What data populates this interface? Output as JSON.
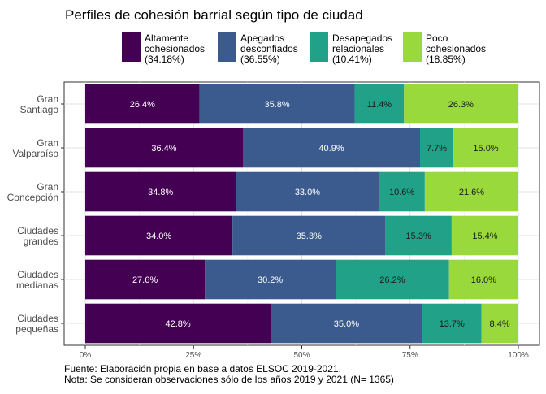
{
  "chart_data": {
    "type": "bar",
    "orientation": "horizontal",
    "stacked": true,
    "title": "Perfiles de cohesión barrial según tipo de ciudad",
    "xlabel": "",
    "ylabel": "",
    "xlim": [
      0,
      100
    ],
    "x_ticks": [
      "0%",
      "25%",
      "50%",
      "75%",
      "100%"
    ],
    "grid": true,
    "legend_position": "top",
    "categories": [
      [
        "Gran",
        "Santiago"
      ],
      [
        "Gran",
        "Valparaíso"
      ],
      [
        "Gran",
        "Concepción"
      ],
      [
        "Ciudades",
        "grandes"
      ],
      [
        "Ciudades",
        "medianas"
      ],
      [
        "Ciudades",
        "pequeñas"
      ]
    ],
    "series": [
      {
        "name": [
          "Altamente",
          "cohesionados",
          "(34.18%)"
        ],
        "color": "#440154",
        "label_color": "#ffffff",
        "values": [
          26.4,
          36.4,
          34.8,
          34.0,
          27.6,
          42.8
        ],
        "labels": [
          "26.4%",
          "36.4%",
          "34.8%",
          "34.0%",
          "27.6%",
          "42.8%"
        ]
      },
      {
        "name": [
          "Apegados",
          "desconfiados",
          "(36.55%)"
        ],
        "color": "#3b5b8f",
        "label_color": "#ffffff",
        "values": [
          35.8,
          40.9,
          33.0,
          35.3,
          30.2,
          35.0
        ],
        "labels": [
          "35.8%",
          "40.9%",
          "33.0%",
          "35.3%",
          "30.2%",
          "35.0%"
        ]
      },
      {
        "name": [
          "Desapegados",
          "relacionales",
          "(10.41%)"
        ],
        "color": "#21a187",
        "label_color": "#1a1a1a",
        "values": [
          11.4,
          7.7,
          10.6,
          15.3,
          26.2,
          13.7
        ],
        "labels": [
          "11.4%",
          "7.7%",
          "10.6%",
          "15.3%",
          "26.2%",
          "13.7%"
        ]
      },
      {
        "name": [
          "Poco",
          "cohesionados",
          "(18.85%)"
        ],
        "color": "#9ad93c",
        "label_color": "#1a1a1a",
        "values": [
          26.3,
          15.0,
          21.6,
          15.4,
          16.0,
          8.4
        ],
        "labels": [
          "26.3%",
          "15.0%",
          "21.6%",
          "15.4%",
          "16.0%",
          "8.4%"
        ]
      }
    ],
    "caption": [
      "Fuente: Elaboración propia en base a datos ELSOC 2019-2021.",
      "Nota: Se consideran observaciones sólo de los años 2019 y 2021 (N= 1365)"
    ]
  }
}
